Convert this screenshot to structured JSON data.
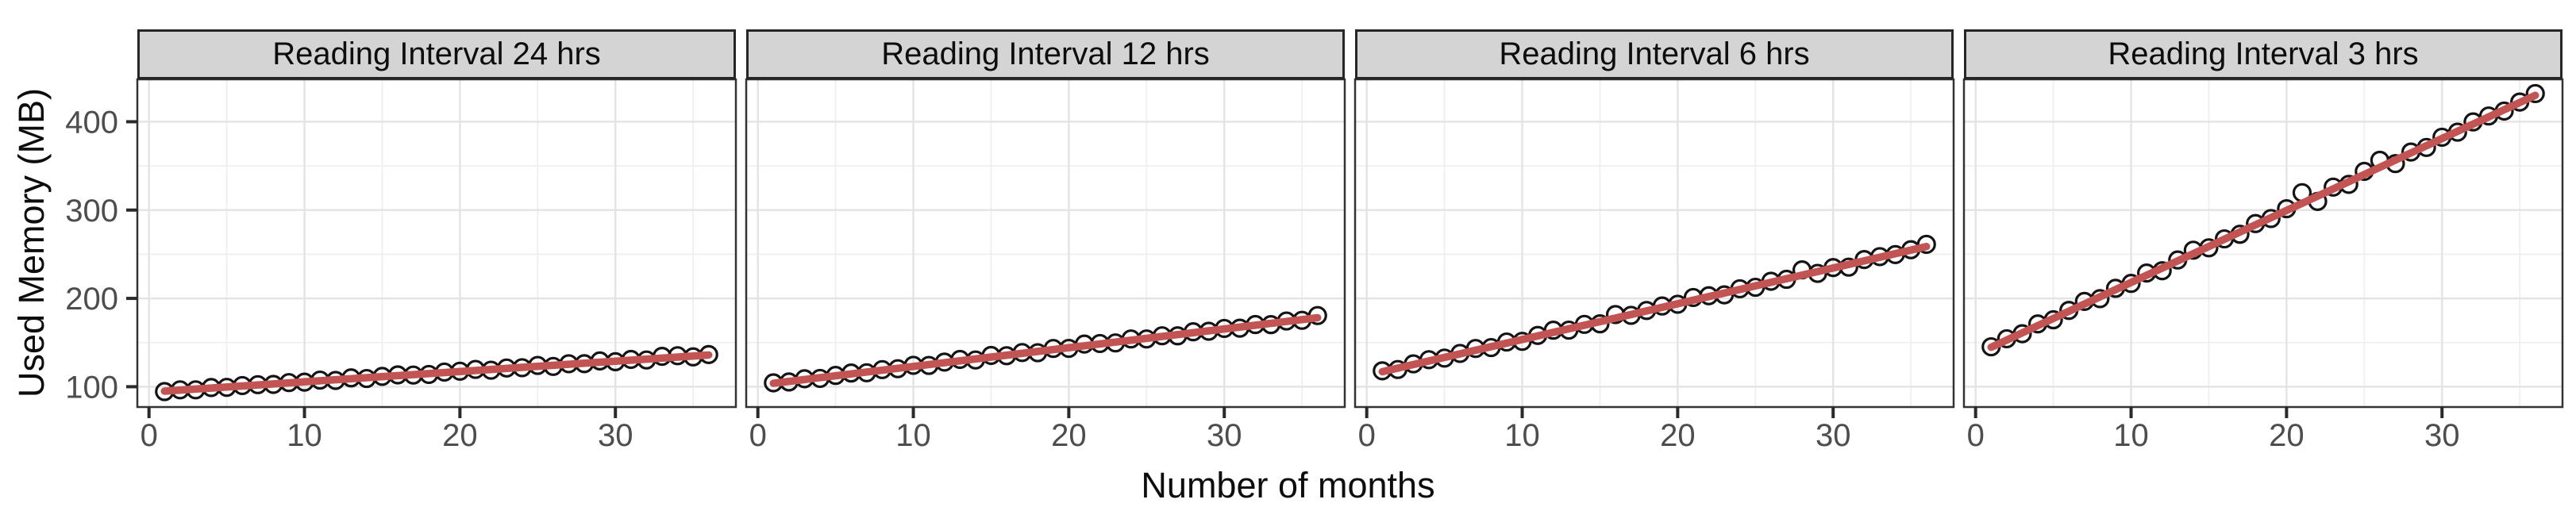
{
  "chart_data": {
    "type": "scatter",
    "title": "",
    "xlabel": "Number of months",
    "ylabel": "Used Memory (MB)",
    "xticks": [
      0,
      10,
      20,
      30
    ],
    "yticks": [
      100,
      200,
      300,
      400
    ],
    "x_minor_ticks": [
      5,
      15,
      25,
      35
    ],
    "y_minor_ticks": [
      150,
      250,
      350,
      450
    ],
    "xlim": [
      -0.75,
      37.75
    ],
    "ylim": [
      77,
      448
    ],
    "grid": "on",
    "legend": "none",
    "point_style": "open-circle",
    "facets": [
      {
        "label": "Reading Interval 24 hrs",
        "x": [
          1,
          2,
          3,
          4,
          5,
          6,
          7,
          8,
          9,
          10,
          11,
          12,
          13,
          14,
          15,
          16,
          17,
          18,
          19,
          20,
          21,
          22,
          23,
          24,
          25,
          26,
          27,
          28,
          29,
          30,
          31,
          32,
          33,
          34,
          35,
          36
        ],
        "y": [
          94.5,
          96.5,
          96.5,
          99.1,
          99.3,
          101.3,
          102.3,
          102.6,
          104.7,
          105.2,
          107.5,
          107.1,
          110.0,
          109.3,
          111.7,
          113.4,
          113.2,
          113.9,
          116.6,
          117.6,
          119.6,
          118.7,
          121.2,
          121.5,
          124.1,
          123.0,
          126.0,
          126.1,
          129.2,
          128.3,
          130.9,
          130.3,
          134.4,
          135.1,
          133.8,
          136.4
        ],
        "trend_line": {
          "x": [
            1,
            36
          ],
          "y": [
            95.0,
            135.9
          ]
        }
      },
      {
        "label": "Reading Interval 12 hrs",
        "x": [
          1,
          2,
          3,
          4,
          5,
          6,
          7,
          8,
          9,
          10,
          11,
          12,
          13,
          14,
          15,
          16,
          17,
          18,
          19,
          20,
          21,
          22,
          23,
          24,
          25,
          26,
          27,
          28,
          29,
          30,
          31,
          32,
          33,
          34,
          35,
          36
        ],
        "y": [
          104.4,
          105.4,
          109.0,
          109.4,
          112.8,
          115.5,
          115.8,
          119.4,
          120.4,
          124.2,
          124.1,
          127.9,
          130.9,
          130.3,
          135.4,
          135.1,
          138.7,
          138.5,
          143.3,
          143.4,
          148.3,
          148.9,
          149.6,
          154.1,
          154.1,
          157.7,
          157.6,
          162.2,
          162.8,
          166.0,
          166.3,
          170.4,
          170.3,
          174.4,
          175.2,
          180.6
        ],
        "trend_line": {
          "x": [
            1,
            36
          ],
          "y": [
            103.9,
            178.1
          ]
        }
      },
      {
        "label": "Reading Interval 6 hrs",
        "x": [
          1,
          2,
          3,
          4,
          5,
          6,
          7,
          8,
          9,
          10,
          11,
          12,
          13,
          14,
          15,
          16,
          17,
          18,
          19,
          20,
          21,
          22,
          23,
          24,
          25,
          26,
          27,
          28,
          29,
          30,
          31,
          32,
          33,
          34,
          35,
          36
        ],
        "y": [
          118.0,
          119.5,
          125.9,
          130.6,
          132.4,
          137.7,
          143.3,
          144.3,
          150.6,
          151.4,
          158.1,
          164.0,
          164.1,
          170.6,
          171.2,
          181.7,
          180.8,
          186.3,
          191.4,
          193.4,
          201.0,
          203.0,
          204.0,
          210.9,
          212.6,
          219.4,
          221.6,
          232.3,
          228.3,
          234.9,
          235.4,
          244.0,
          247.3,
          249.6,
          255.1,
          261.2
        ],
        "trend_line": {
          "x": [
            1,
            36
          ],
          "y": [
            117.0,
            258.7
          ]
        }
      },
      {
        "label": "Reading Interval 3 hrs",
        "x": [
          1,
          2,
          3,
          4,
          5,
          6,
          7,
          8,
          9,
          10,
          11,
          12,
          13,
          14,
          15,
          16,
          17,
          18,
          19,
          20,
          21,
          22,
          23,
          24,
          25,
          26,
          27,
          28,
          29,
          30,
          31,
          32,
          33,
          34,
          35,
          36
        ],
        "y": [
          145.2,
          154.3,
          160.0,
          171.1,
          175.8,
          186.4,
          196.6,
          199.7,
          211.4,
          217.0,
          228.7,
          231.3,
          243.5,
          254.6,
          257.3,
          267.4,
          272.6,
          284.7,
          290.4,
          301.5,
          319.7,
          309.8,
          326.0,
          329.1,
          343.8,
          356.4,
          352.6,
          365.7,
          370.9,
          382.5,
          388.2,
          399.8,
          406.5,
          412.1,
          422.3,
          431.9
        ],
        "trend_line": {
          "x": [
            1,
            36
          ],
          "y": [
            144.7,
            429.9
          ]
        }
      }
    ],
    "colors": {
      "trend_line": "#C25454",
      "point_stroke": "#141414",
      "panel_background": "#FFFFFF",
      "panel_border": "#333333",
      "strip_background": "#D4D4D4",
      "strip_border": "#262626",
      "grid_major": "#E4E4E4",
      "grid_minor": "#EFEFEF",
      "tick_label": "#4D4D4D",
      "tick_mark": "#2A2A2A"
    }
  }
}
